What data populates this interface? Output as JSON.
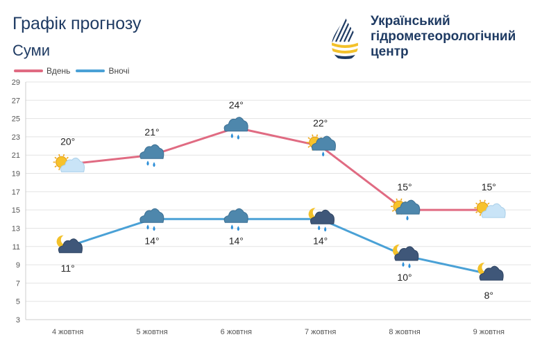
{
  "header": {
    "title": "Графік прогнозу",
    "city": "Суми",
    "org_lines": [
      "Український",
      "гідрометеорологічний",
      "центр"
    ]
  },
  "colors": {
    "day": "#e06b82",
    "night": "#4aa1d6",
    "text": "#1f3b63",
    "grid": "#e3e3e3"
  },
  "chart_data": {
    "type": "line",
    "categories": [
      "4 жовтня",
      "5 жовтня",
      "6 жовтня",
      "7 жовтня",
      "8 жовтня",
      "9 жовтня"
    ],
    "series": [
      {
        "name": "Вдень",
        "values": [
          20,
          21,
          24,
          22,
          15,
          15
        ],
        "labels": [
          "20°",
          "21°",
          "24°",
          "22°",
          "15°",
          "15°"
        ],
        "icons": [
          "sun-cloud-icon",
          "rain-cloud-icon",
          "rain-cloud-icon",
          "sun-rain-cloud-icon",
          "sun-rain-cloud-icon",
          "sun-cloud-icon"
        ]
      },
      {
        "name": "Вночі",
        "values": [
          11,
          14,
          14,
          14,
          10,
          8
        ],
        "labels": [
          "11°",
          "14°",
          "14°",
          "14°",
          "10°",
          "8°"
        ],
        "icons": [
          "moon-cloud-icon",
          "rain-cloud-icon",
          "rain-cloud-icon",
          "moon-rain-cloud-icon",
          "moon-rain-cloud-icon",
          "moon-cloud-icon"
        ]
      }
    ],
    "y_ticks": [
      "3",
      "5",
      "7",
      "9",
      "11",
      "13",
      "15",
      "17",
      "19",
      "21",
      "23",
      "25",
      "27",
      "29"
    ],
    "ylim": [
      3,
      29
    ],
    "grid": true,
    "legend_position": "top-left"
  }
}
